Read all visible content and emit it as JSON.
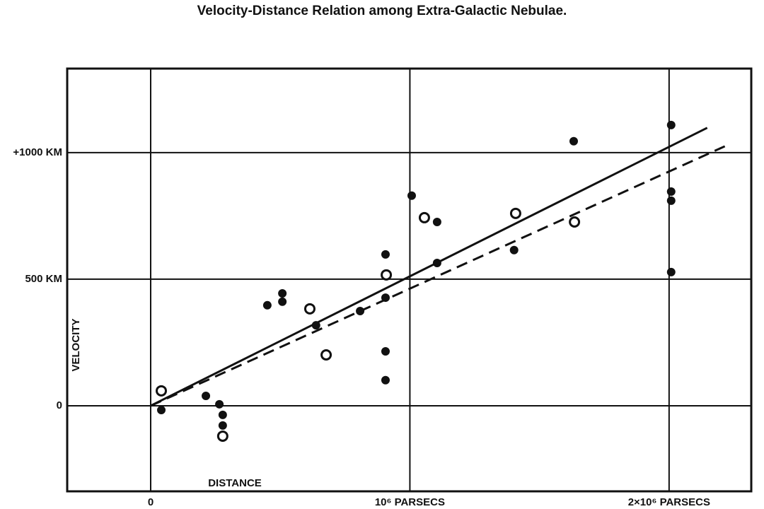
{
  "chart_data": {
    "type": "scatter",
    "title": "Velocity-Distance Relation among Extra-Galactic Nebulae.",
    "xlabel": "DISTANCE",
    "ylabel": "VELOCITY",
    "xlim": [
      -322000,
      2317000
    ],
    "ylim": [
      -338,
      1332
    ],
    "xticks": [
      0,
      {
        "value": 1000000,
        "label": "10⁶ PARSECS"
      },
      {
        "value": 2000000,
        "label": "2×10⁶ PARSECS"
      }
    ],
    "yticks": [
      0,
      {
        "value": 500,
        "label": "500 KM"
      },
      {
        "value": 1000,
        "label": "+1000 KM"
      }
    ],
    "grid": true,
    "series": [
      {
        "marker": "filled",
        "color": "#111111",
        "x": [
          41000,
          213000,
          265000,
          278000,
          278000,
          450000,
          508000,
          508000,
          638000,
          808000,
          906000,
          906000,
          906000,
          906000,
          1007000,
          1105000,
          1105000,
          1402000,
          1632000,
          2008000,
          2008000,
          2008000,
          2008000
        ],
        "values": [
          -17,
          39,
          6,
          -36,
          -78,
          397,
          444,
          411,
          318,
          374,
          598,
          427,
          215,
          101,
          830,
          726,
          564,
          615,
          1045,
          1109,
          846,
          810,
          528
        ]
      },
      {
        "marker": "open",
        "color": "#111111",
        "x": [
          41000,
          278000,
          614000,
          677000,
          909000,
          1056000,
          1408000,
          1635000
        ],
        "values": [
          59,
          -120,
          383,
          201,
          517,
          743,
          760,
          726
        ]
      }
    ],
    "lines": [
      {
        "style": "solid",
        "x": [
          0,
          2147000
        ],
        "values": [
          0,
          1098
        ]
      },
      {
        "style": "dashed",
        "x": [
          0,
          2215000
        ],
        "values": [
          0,
          1025
        ]
      }
    ]
  }
}
